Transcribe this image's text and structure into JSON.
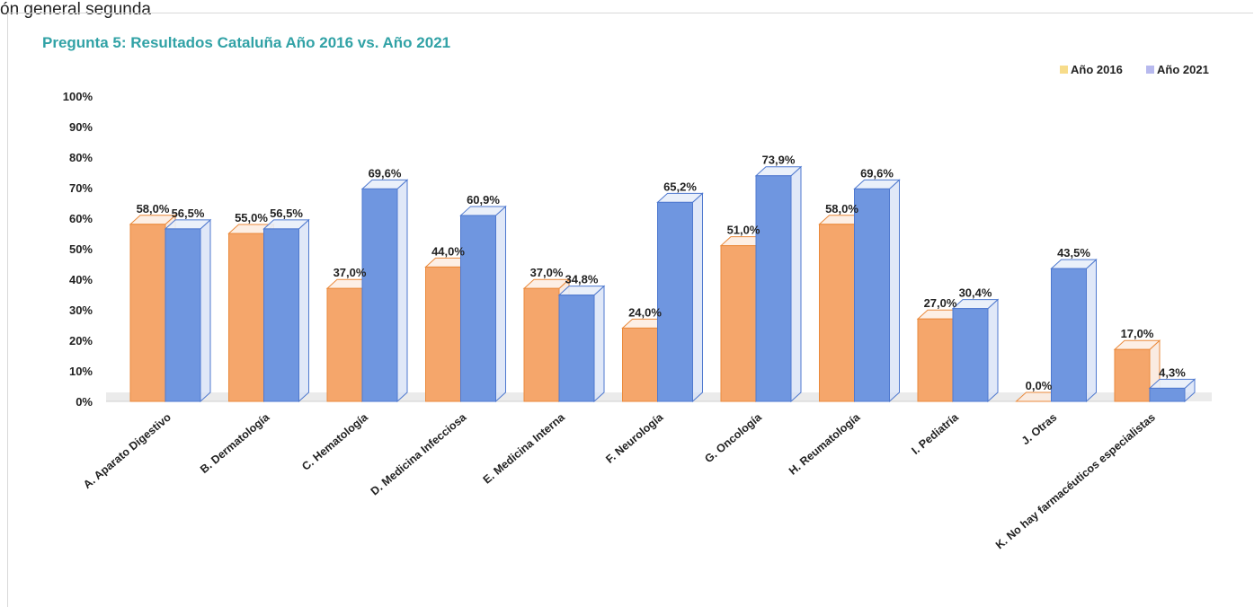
{
  "page": {
    "top_fragment": "ón general segunda"
  },
  "chart_data": {
    "type": "bar",
    "title": "Pregunta 5: Resultados Cataluña Año 2016 vs. Año 2021",
    "categories": [
      "A. Aparato Digestivo",
      "B. Dermatología",
      "C. Hematología",
      "D. Medicina Infecciosa",
      "E. Medicina Interna",
      "F. Neurología",
      "G. Oncología",
      "H. Reumatología",
      "I. Pediatría",
      "J. Otras",
      "K. No hay farmacéuticos especialistas"
    ],
    "series": [
      {
        "name": "Año 2016",
        "legend_color": "#f7dc8a",
        "bar_color": "#f5a66b",
        "edge_color": "#ea8a3c",
        "values": [
          58.0,
          55.0,
          37.0,
          44.0,
          37.0,
          24.0,
          51.0,
          58.0,
          27.0,
          0.0,
          17.0
        ],
        "labels": [
          "58,0%",
          "55,0%",
          "37,0%",
          "44,0%",
          "37,0%",
          "24,0%",
          "51,0%",
          "58,0%",
          "27,0%",
          "0,0%",
          "17,0%"
        ]
      },
      {
        "name": "Año 2021",
        "legend_color": "#b7b9ee",
        "bar_color": "#6f96e0",
        "edge_color": "#4f79cf",
        "values": [
          56.5,
          56.5,
          69.6,
          60.9,
          34.8,
          65.2,
          73.9,
          69.6,
          30.4,
          43.5,
          4.3
        ],
        "labels": [
          "56,5%",
          "56,5%",
          "69,6%",
          "60,9%",
          "34,8%",
          "65,2%",
          "73,9%",
          "69,6%",
          "30,4%",
          "43,5%",
          "4,3%"
        ]
      }
    ],
    "y_ticks": [
      "0%",
      "10%",
      "20%",
      "30%",
      "40%",
      "50%",
      "60%",
      "70%",
      "80%",
      "90%",
      "100%"
    ],
    "ylim": [
      0,
      100
    ],
    "grid": false,
    "legend_position": "top-right"
  }
}
